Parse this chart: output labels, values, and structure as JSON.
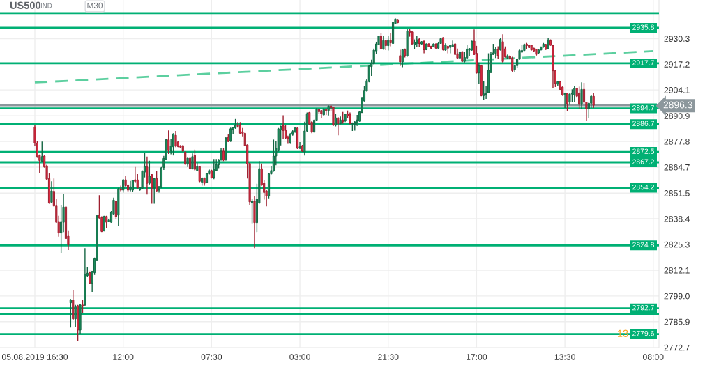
{
  "chart_data": {
    "type": "candlestick",
    "title": "US500",
    "subtitle": "IND",
    "annotations": [
      "M30",
      "2896.3",
      "13"
    ],
    "categories": [
      "05.08.2019 16:30",
      null,
      null,
      null,
      null,
      null,
      null,
      null,
      null,
      null,
      null,
      null,
      null,
      null,
      null,
      null,
      null,
      null,
      null,
      null,
      null,
      null,
      null,
      null,
      null,
      null,
      null,
      null,
      null,
      null,
      null,
      null,
      null,
      null,
      null,
      null,
      null,
      "12:00",
      null,
      null,
      null,
      null,
      null,
      null,
      null,
      null,
      null,
      null,
      null,
      null,
      null,
      null,
      null,
      null,
      null,
      null,
      null,
      null,
      null,
      null,
      null,
      null,
      null,
      null,
      null,
      null,
      null,
      null,
      null,
      null,
      null,
      null,
      null,
      null,
      "07:30",
      null,
      null,
      null,
      null,
      null,
      null,
      null,
      null,
      null,
      null,
      null,
      null,
      null,
      null,
      null,
      null,
      null,
      null,
      null,
      null,
      null,
      null,
      null,
      null,
      null,
      null,
      null,
      null,
      null,
      null,
      null,
      null,
      null,
      null,
      null,
      null,
      "03:00",
      null,
      null,
      null,
      null,
      null,
      null,
      null,
      null,
      null,
      null,
      null,
      null,
      null,
      null,
      null,
      null,
      null,
      null,
      null,
      null,
      null,
      null,
      null,
      null,
      null,
      null,
      null,
      null,
      null,
      null,
      null,
      null,
      null,
      null,
      null,
      null,
      "21:30",
      null,
      null,
      null,
      null,
      null,
      null,
      null,
      null,
      null,
      null,
      null,
      null,
      null,
      null,
      null,
      null,
      null,
      null,
      null,
      null,
      null,
      null,
      null,
      null,
      null,
      null,
      null,
      null,
      null,
      null,
      null,
      null,
      null,
      null,
      null,
      null,
      "17:00",
      null,
      null,
      null,
      null,
      null,
      null,
      null,
      null,
      null,
      null,
      null,
      null,
      null,
      null,
      null,
      null,
      null,
      null,
      null,
      null,
      null,
      null,
      null,
      null,
      null,
      null,
      null,
      null,
      null,
      null,
      null,
      null,
      null,
      null,
      null,
      null,
      "13:30",
      null,
      null,
      null,
      null,
      null,
      null,
      null,
      null,
      null,
      null,
      null,
      null,
      null,
      null,
      null,
      null,
      null,
      null,
      null,
      null,
      null,
      null,
      null,
      null,
      null,
      null,
      null,
      null,
      null,
      null,
      null,
      null,
      null,
      null,
      null,
      null,
      "08:00"
    ],
    "ohlc": [
      [
        2885.2,
        2886.1,
        2875.5,
        2877.0
      ],
      [
        2877.0,
        2878.0,
        2869.5,
        2870.1
      ],
      [
        2870.7,
        2871.2,
        2861.8,
        2868.1
      ],
      [
        2867.8,
        2877.8,
        2867.4,
        2870.1
      ],
      [
        2870.4,
        2870.7,
        2864.5,
        2864.8
      ],
      [
        2865.4,
        2866.0,
        2858.3,
        2858.6
      ],
      [
        2858.9,
        2861.5,
        2846.1,
        2846.5
      ],
      [
        2846.8,
        2857.5,
        2846.5,
        2852.6
      ],
      [
        2852.4,
        2858.9,
        2844.7,
        2844.9
      ],
      [
        2844.9,
        2848.5,
        2836.4,
        2836.6
      ],
      [
        2837.0,
        2839.9,
        2829.3,
        2831.1
      ],
      [
        2831.1,
        2845.3,
        2821.0,
        2837.0
      ],
      [
        2836.6,
        2851.2,
        2831.6,
        2844.4
      ],
      [
        2844.4,
        2844.7,
        2828.1,
        2828.3
      ],
      [
        2829.5,
        2832.5,
        2822.4,
        2825.1
      ],
      [
        2795.5,
        2797.5,
        2782.9,
        2797.0
      ],
      [
        2797.0,
        2802.1,
        2786.9,
        2787.3
      ],
      [
        2787.3,
        2794.4,
        2783.1,
        2793.5
      ],
      [
        2794.0,
        2794.4,
        2776.2,
        2781.6
      ],
      [
        2781.6,
        2794.7,
        2779.5,
        2794.4
      ],
      [
        2794.4,
        2797.1,
        2790.2,
        2793.8
      ],
      [
        2794.4,
        2823.4,
        2794.0,
        2810.1
      ],
      [
        2809.4,
        2813.9,
        2808.6,
        2810.6
      ],
      [
        2810.9,
        2811.5,
        2805.0,
        2805.6
      ],
      [
        2805.6,
        2811.8,
        2801.1,
        2811.5
      ],
      [
        2810.9,
        2818.6,
        2809.7,
        2818.0
      ],
      [
        2817.4,
        2840.2,
        2817.2,
        2839.9
      ],
      [
        2840.2,
        2850.4,
        2838.5,
        2838.8
      ],
      [
        2839.0,
        2839.7,
        2831.6,
        2831.9
      ],
      [
        2832.2,
        2839.9,
        2831.9,
        2839.6
      ],
      [
        2839.6,
        2839.9,
        2833.4,
        2836.6
      ],
      [
        2837.0,
        2838.2,
        2836.6,
        2837.8
      ],
      [
        2836.6,
        2842.3,
        2836.4,
        2841.7
      ],
      [
        2840.8,
        2849.2,
        2840.5,
        2847.9
      ],
      [
        2847.3,
        2847.6,
        2838.2,
        2839.3
      ],
      [
        2840.2,
        2854.1,
        2834.6,
        2853.6
      ],
      [
        2853.6,
        2855.3,
        2852.4,
        2853.0
      ],
      [
        2853.0,
        2858.6,
        2851.7,
        2858.3
      ],
      [
        2858.3,
        2860.3,
        2854.7,
        2855.3
      ],
      [
        2855.6,
        2855.9,
        2852.1,
        2853.0
      ],
      [
        2853.0,
        2857.7,
        2852.4,
        2854.7
      ],
      [
        2853.0,
        2858.3,
        2852.0,
        2858.0
      ],
      [
        2858.3,
        2864.8,
        2856.5,
        2857.5
      ],
      [
        2858.3,
        2861.2,
        2853.9,
        2854.1
      ],
      [
        2853.2,
        2854.7,
        2852.7,
        2854.4
      ],
      [
        2853.9,
        2863.0,
        2853.6,
        2862.8
      ],
      [
        2862.2,
        2871.9,
        2859.5,
        2865.0
      ],
      [
        2864.8,
        2870.1,
        2850.8,
        2856.5
      ],
      [
        2856.5,
        2868.0,
        2855.9,
        2860.1
      ],
      [
        2860.9,
        2861.2,
        2846.1,
        2854.1
      ],
      [
        2854.1,
        2859.1,
        2846.1,
        2858.9
      ],
      [
        2858.9,
        2862.9,
        2852.4,
        2852.6
      ],
      [
        2853.0,
        2855.1,
        2851.7,
        2854.7
      ],
      [
        2854.4,
        2864.8,
        2854.1,
        2864.4
      ],
      [
        2864.6,
        2870.5,
        2863.3,
        2869.2
      ],
      [
        2868.6,
        2879.0,
        2868.4,
        2878.7
      ],
      [
        2878.7,
        2883.5,
        2871.5,
        2873.1
      ],
      [
        2873.1,
        2879.3,
        2871.3,
        2875.5
      ],
      [
        2875.1,
        2882.0,
        2870.7,
        2881.7
      ],
      [
        2881.0,
        2883.2,
        2874.9,
        2875.5
      ],
      [
        2877.6,
        2877.8,
        2874.9,
        2875.2
      ],
      [
        2875.7,
        2875.9,
        2874.3,
        2874.9
      ],
      [
        2875.7,
        2875.9,
        2872.5,
        2872.9
      ],
      [
        2872.5,
        2872.7,
        2866.0,
        2866.2
      ],
      [
        2866.2,
        2869.5,
        2864.8,
        2869.3
      ],
      [
        2869.3,
        2869.5,
        2863.6,
        2864.0
      ],
      [
        2864.0,
        2871.7,
        2863.6,
        2870.1
      ],
      [
        2870.7,
        2873.7,
        2863.0,
        2863.6
      ],
      [
        2863.0,
        2866.9,
        2862.7,
        2865.0
      ],
      [
        2865.0,
        2865.4,
        2857.1,
        2857.5
      ],
      [
        2857.1,
        2859.5,
        2855.3,
        2859.2
      ],
      [
        2859.2,
        2859.5,
        2855.3,
        2856.5
      ],
      [
        2856.9,
        2861.8,
        2856.5,
        2861.5
      ],
      [
        2861.3,
        2863.6,
        2861.0,
        2863.0
      ],
      [
        2863.0,
        2863.4,
        2858.9,
        2859.2
      ],
      [
        2859.5,
        2868.9,
        2858.6,
        2863.6
      ],
      [
        2863.0,
        2868.9,
        2862.7,
        2866.0
      ],
      [
        2866.0,
        2868.9,
        2864.2,
        2868.4
      ],
      [
        2868.4,
        2874.3,
        2868.1,
        2872.9
      ],
      [
        2872.9,
        2874.3,
        2867.8,
        2868.4
      ],
      [
        2868.4,
        2880.2,
        2868.1,
        2879.6
      ],
      [
        2880.0,
        2881.4,
        2877.6,
        2877.8
      ],
      [
        2878.2,
        2884.9,
        2877.6,
        2884.3
      ],
      [
        2884.0,
        2885.2,
        2881.4,
        2884.9
      ],
      [
        2884.7,
        2889.3,
        2884.3,
        2886.1
      ],
      [
        2886.1,
        2887.7,
        2884.9,
        2885.5
      ],
      [
        2886.1,
        2887.7,
        2881.7,
        2882.0
      ],
      [
        2882.8,
        2884.7,
        2880.4,
        2882.0
      ],
      [
        2882.0,
        2882.2,
        2875.5,
        2875.7
      ],
      [
        2876.1,
        2876.3,
        2858.9,
        2866.3
      ],
      [
        2866.6,
        2866.8,
        2845.3,
        2847.0
      ],
      [
        2846.4,
        2848.5,
        2836.1,
        2847.3
      ],
      [
        2847.3,
        2850.0,
        2823.4,
        2836.4
      ],
      [
        2836.4,
        2856.3,
        2831.6,
        2848.5
      ],
      [
        2846.4,
        2867.8,
        2846.1,
        2864.0
      ],
      [
        2864.0,
        2866.6,
        2855.3,
        2855.6
      ],
      [
        2856.5,
        2858.3,
        2848.2,
        2851.8
      ],
      [
        2852.6,
        2853.0,
        2844.7,
        2850.0
      ],
      [
        2850.0,
        2861.5,
        2848.8,
        2861.3
      ],
      [
        2861.3,
        2865.4,
        2861.0,
        2863.0
      ],
      [
        2862.8,
        2878.8,
        2862.4,
        2870.4
      ],
      [
        2870.4,
        2878.1,
        2865.7,
        2874.3
      ],
      [
        2873.1,
        2884.7,
        2872.7,
        2884.3
      ],
      [
        2883.7,
        2885.9,
        2875.8,
        2885.5
      ],
      [
        2885.8,
        2891.2,
        2879.0,
        2883.4
      ],
      [
        2883.5,
        2886.1,
        2879.2,
        2879.6
      ],
      [
        2880.2,
        2880.8,
        2876.6,
        2879.2
      ],
      [
        2877.2,
        2882.0,
        2876.6,
        2881.7
      ],
      [
        2881.4,
        2883.7,
        2880.8,
        2882.9
      ],
      [
        2882.6,
        2884.9,
        2882.3,
        2884.7
      ],
      [
        2884.7,
        2884.9,
        2874.0,
        2874.3
      ],
      [
        2874.3,
        2877.5,
        2874.0,
        2875.1
      ],
      [
        2875.5,
        2876.1,
        2872.5,
        2872.9
      ],
      [
        2872.5,
        2887.9,
        2870.7,
        2883.2
      ],
      [
        2883.2,
        2892.6,
        2882.8,
        2892.0
      ],
      [
        2892.6,
        2892.9,
        2886.1,
        2886.7
      ],
      [
        2887.7,
        2888.5,
        2882.0,
        2882.6
      ],
      [
        2882.6,
        2889.1,
        2882.3,
        2888.7
      ],
      [
        2888.7,
        2894.8,
        2888.2,
        2894.4
      ],
      [
        2894.4,
        2894.6,
        2892.0,
        2893.0
      ],
      [
        2893.6,
        2893.8,
        2889.9,
        2892.0
      ],
      [
        2891.4,
        2894.8,
        2891.1,
        2894.4
      ],
      [
        2894.4,
        2894.6,
        2891.4,
        2893.5
      ],
      [
        2893.6,
        2896.2,
        2891.1,
        2895.9
      ],
      [
        2895.9,
        2896.2,
        2893.5,
        2895.0
      ],
      [
        2895.3,
        2895.6,
        2885.8,
        2886.1
      ],
      [
        2886.1,
        2891.8,
        2885.5,
        2889.9
      ],
      [
        2889.9,
        2890.1,
        2881.0,
        2886.9
      ],
      [
        2886.9,
        2890.6,
        2886.7,
        2888.8
      ],
      [
        2888.8,
        2892.9,
        2886.9,
        2887.9
      ],
      [
        2888.5,
        2892.0,
        2887.7,
        2891.8
      ],
      [
        2891.8,
        2893.6,
        2889.7,
        2890.9
      ],
      [
        2891.8,
        2892.6,
        2886.7,
        2886.9
      ],
      [
        2886.9,
        2887.5,
        2883.2,
        2887.3
      ],
      [
        2886.7,
        2888.5,
        2883.4,
        2887.7
      ],
      [
        2886.1,
        2891.4,
        2885.9,
        2888.8
      ],
      [
        2888.2,
        2893.2,
        2887.9,
        2892.9
      ],
      [
        2892.6,
        2900.6,
        2892.3,
        2900.0
      ],
      [
        2898.5,
        2906.0,
        2898.2,
        2903.9
      ],
      [
        2903.6,
        2909.8,
        2903.3,
        2908.8
      ],
      [
        2908.4,
        2916.9,
        2908.0,
        2916.3
      ],
      [
        2916.0,
        2919.5,
        2911.3,
        2917.7
      ],
      [
        2917.5,
        2925.2,
        2917.1,
        2924.4
      ],
      [
        2924.0,
        2928.7,
        2922.5,
        2927.6
      ],
      [
        2927.2,
        2931.7,
        2927.0,
        2931.6
      ],
      [
        2931.6,
        2933.1,
        2924.8,
        2925.0
      ],
      [
        2925.0,
        2931.9,
        2924.6,
        2929.3
      ],
      [
        2929.3,
        2929.6,
        2924.4,
        2926.7
      ],
      [
        2926.7,
        2931.6,
        2924.2,
        2929.6
      ],
      [
        2929.6,
        2933.1,
        2926.4,
        2928.1
      ],
      [
        2927.8,
        2938.8,
        2927.6,
        2938.6
      ],
      [
        2938.0,
        2940.6,
        2937.7,
        2940.3
      ],
      [
        2940.0,
        2940.3,
        2938.2,
        2938.4
      ],
      [
        2921.6,
        2924.6,
        2916.3,
        2918.4
      ],
      [
        2918.4,
        2924.8,
        2915.7,
        2924.6
      ],
      [
        2924.6,
        2925.2,
        2920.7,
        2921.6
      ],
      [
        2921.4,
        2935.3,
        2921.0,
        2934.3
      ],
      [
        2934.3,
        2935.3,
        2931.3,
        2933.5
      ],
      [
        2933.7,
        2934.0,
        2927.3,
        2927.6
      ],
      [
        2927.2,
        2929.9,
        2925.0,
        2928.4
      ],
      [
        2927.9,
        2931.9,
        2926.1,
        2929.7
      ],
      [
        2929.9,
        2930.8,
        2926.1,
        2927.8
      ],
      [
        2927.6,
        2929.0,
        2927.3,
        2928.7
      ],
      [
        2929.0,
        2929.2,
        2922.8,
        2924.6
      ],
      [
        2924.6,
        2927.8,
        2924.4,
        2927.6
      ],
      [
        2927.6,
        2927.9,
        2925.9,
        2926.1
      ],
      [
        2926.4,
        2926.6,
        2924.8,
        2925.4
      ],
      [
        2926.1,
        2927.8,
        2925.9,
        2927.6
      ],
      [
        2927.6,
        2927.8,
        2925.2,
        2925.4
      ],
      [
        2925.4,
        2928.7,
        2925.2,
        2927.8
      ],
      [
        2927.8,
        2930.5,
        2927.6,
        2930.3
      ],
      [
        2930.8,
        2931.0,
        2924.2,
        2924.6
      ],
      [
        2924.4,
        2927.9,
        2924.1,
        2927.0
      ],
      [
        2926.4,
        2926.6,
        2922.8,
        2925.4
      ],
      [
        2925.8,
        2927.2,
        2922.8,
        2927.0
      ],
      [
        2926.1,
        2929.3,
        2925.9,
        2927.3
      ],
      [
        2927.6,
        2927.8,
        2922.0,
        2922.2
      ],
      [
        2922.6,
        2925.2,
        2920.2,
        2920.4
      ],
      [
        2920.4,
        2923.8,
        2920.2,
        2923.4
      ],
      [
        2923.6,
        2923.9,
        2918.3,
        2918.7
      ],
      [
        2918.7,
        2923.4,
        2918.1,
        2920.7
      ],
      [
        2920.4,
        2927.0,
        2920.2,
        2925.0
      ],
      [
        2924.4,
        2925.4,
        2921.3,
        2925.2
      ],
      [
        2924.4,
        2929.2,
        2924.1,
        2929.0
      ],
      [
        2929.0,
        2935.0,
        2922.0,
        2922.2
      ],
      [
        2922.8,
        2926.6,
        2912.5,
        2912.8
      ],
      [
        2912.8,
        2918.1,
        2907.4,
        2916.5
      ],
      [
        2916.5,
        2916.9,
        2900.9,
        2901.2
      ],
      [
        2901.2,
        2908.6,
        2899.1,
        2902.1
      ],
      [
        2901.7,
        2906.2,
        2899.5,
        2902.3
      ],
      [
        2902.7,
        2922.8,
        2902.5,
        2914.2
      ],
      [
        2913.0,
        2923.6,
        2912.8,
        2922.2
      ],
      [
        2922.2,
        2927.6,
        2922.0,
        2923.0
      ],
      [
        2922.8,
        2926.0,
        2920.4,
        2924.8
      ],
      [
        2924.8,
        2926.4,
        2919.9,
        2921.6
      ],
      [
        2924.5,
        2930.5,
        2924.2,
        2929.9
      ],
      [
        2928.7,
        2932.5,
        2918.0,
        2918.6
      ],
      [
        2925.1,
        2926.3,
        2920.6,
        2921.0
      ],
      [
        2920.4,
        2922.2,
        2919.8,
        2921.6
      ],
      [
        2921.2,
        2921.8,
        2919.7,
        2920.2
      ],
      [
        2920.4,
        2921.0,
        2913.1,
        2913.9
      ],
      [
        2914.5,
        2916.8,
        2913.3,
        2916.5
      ],
      [
        2916.5,
        2920.2,
        2915.5,
        2919.8
      ],
      [
        2919.8,
        2924.9,
        2919.5,
        2924.2
      ],
      [
        2923.4,
        2926.9,
        2923.0,
        2924.2
      ],
      [
        2924.2,
        2927.7,
        2924.0,
        2927.3
      ],
      [
        2927.5,
        2928.1,
        2925.1,
        2926.7
      ],
      [
        2926.9,
        2927.3,
        2925.5,
        2925.7
      ],
      [
        2926.9,
        2927.1,
        2924.2,
        2924.5
      ],
      [
        2925.4,
        2925.6,
        2923.4,
        2924.0
      ],
      [
        2924.9,
        2925.1,
        2921.6,
        2922.2
      ],
      [
        2923.0,
        2924.8,
        2922.5,
        2924.5
      ],
      [
        2924.5,
        2926.3,
        2924.3,
        2926.0
      ],
      [
        2926.0,
        2928.1,
        2925.7,
        2927.5
      ],
      [
        2927.3,
        2927.5,
        2924.5,
        2924.9
      ],
      [
        2925.1,
        2930.5,
        2924.9,
        2929.6
      ],
      [
        2929.3,
        2929.9,
        2926.7,
        2926.9
      ],
      [
        2926.7,
        2926.9,
        2905.2,
        2913.9
      ],
      [
        2913.9,
        2914.1,
        2905.6,
        2907.4
      ],
      [
        2907.1,
        2908.6,
        2906.0,
        2908.3
      ],
      [
        2908.3,
        2908.6,
        2904.2,
        2904.4
      ],
      [
        2905.6,
        2905.8,
        2901.1,
        2901.5
      ],
      [
        2901.5,
        2902.6,
        2894.9,
        2902.4
      ],
      [
        2902.4,
        2902.6,
        2893.2,
        2897.0
      ],
      [
        2897.9,
        2902.3,
        2896.5,
        2902.0
      ],
      [
        2902.0,
        2904.4,
        2897.9,
        2902.6
      ],
      [
        2901.5,
        2906.2,
        2897.9,
        2905.0
      ],
      [
        2905.0,
        2905.2,
        2900.5,
        2900.9
      ],
      [
        2902.6,
        2905.8,
        2894.4,
        2896.7
      ],
      [
        2896.7,
        2908.0,
        2894.4,
        2904.4
      ],
      [
        2904.4,
        2907.7,
        2896.7,
        2897.9
      ],
      [
        2897.9,
        2898.1,
        2888.4,
        2894.4
      ],
      [
        2894.4,
        2897.5,
        2889.6,
        2897.3
      ],
      [
        2897.3,
        2901.5,
        2894.9,
        2900.9
      ],
      [
        2900.9,
        2902.4,
        2894.9,
        2896.3
      ],
      null,
      null,
      null,
      null,
      null,
      null,
      null,
      null,
      null,
      null,
      null,
      null,
      null,
      null,
      null,
      null,
      null,
      null,
      null,
      null,
      null,
      null,
      null,
      null,
      null
    ],
    "colors": [
      "#dc2a40",
      "#dc2a40",
      "#dc2a40",
      "#1b8c5c",
      "#dc2a40",
      "#dc2a40",
      "#dc2a40",
      "#1b8c5c",
      "#dc2a40",
      "#dc2a40",
      "#dc2a40",
      "#1b8c5c",
      "#1b8c5c",
      "#dc2a40",
      "#dc2a40",
      "#1b8c5c",
      "#dc2a40",
      "#1b8c5c",
      "#dc2a40",
      "#1b8c5c",
      "#dc2a40",
      "#1b8c5c",
      "#1b8c5c",
      "#dc2a40",
      "#1b8c5c",
      "#1b8c5c",
      "#1b8c5c",
      "#dc2a40",
      "#dc2a40",
      "#1b8c5c",
      "#dc2a40",
      "#1b8c5c",
      "#1b8c5c",
      "#1b8c5c",
      "#dc2a40",
      "#1b8c5c",
      "#dc2a40",
      "#1b8c5c",
      "#dc2a40",
      "#dc2a40",
      "#1b8c5c",
      "#1b8c5c",
      "#dc2a40",
      "#dc2a40",
      "#1b8c5c",
      "#1b8c5c",
      "#1b8c5c",
      "#dc2a40",
      "#1b8c5c",
      "#dc2a40",
      "#1b8c5c",
      "#dc2a40",
      "#1b8c5c",
      "#1b8c5c",
      "#1b8c5c",
      "#1b8c5c",
      "#dc2a40",
      "#1b8c5c",
      "#1b8c5c",
      "#dc2a40",
      "#dc2a40",
      "#dc2a40",
      "#dc2a40",
      "#dc2a40",
      "#1b8c5c",
      "#dc2a40",
      "#1b8c5c",
      "#dc2a40",
      "#1b8c5c",
      "#dc2a40",
      "#1b8c5c",
      "#dc2a40",
      "#1b8c5c",
      "#1b8c5c",
      "#dc2a40",
      "#1b8c5c",
      "#1b8c5c",
      "#1b8c5c",
      "#1b8c5c",
      "#dc2a40",
      "#1b8c5c",
      "#dc2a40",
      "#1b8c5c",
      "#1b8c5c",
      "#1b8c5c",
      "#dc2a40",
      "#dc2a40",
      "#dc2a40",
      "#dc2a40",
      "#dc2a40",
      "#dc2a40",
      "#1b8c5c",
      "#dc2a40",
      "#1b8c5c",
      "#1b8c5c",
      "#dc2a40",
      "#dc2a40",
      "#dc2a40",
      "#1b8c5c",
      "#1b8c5c",
      "#1b8c5c",
      "#1b8c5c",
      "#1b8c5c",
      "#1b8c5c",
      "#dc2a40",
      "#dc2a40",
      "#dc2a40",
      "#1b8c5c",
      "#1b8c5c",
      "#1b8c5c",
      "#dc2a40",
      "#1b8c5c",
      "#dc2a40",
      "#1b8c5c",
      "#1b8c5c",
      "#dc2a40",
      "#dc2a40",
      "#1b8c5c",
      "#1b8c5c",
      "#dc2a40",
      "#dc2a40",
      "#1b8c5c",
      "#dc2a40",
      "#1b8c5c",
      "#dc2a40",
      "#dc2a40",
      "#1b8c5c",
      "#dc2a40",
      "#1b8c5c",
      "#dc2a40",
      "#1b8c5c",
      "#dc2a40",
      "#dc2a40",
      "#1b8c5c",
      "#1b8c5c",
      "#1b8c5c",
      "#1b8c5c",
      "#1b8c5c",
      "#1b8c5c",
      "#1b8c5c",
      "#1b8c5c",
      "#1b8c5c",
      "#1b8c5c",
      "#1b8c5c",
      "#1b8c5c",
      "#dc2a40",
      "#1b8c5c",
      "#dc2a40",
      "#1b8c5c",
      "#dc2a40",
      "#1b8c5c",
      "#1b8c5c",
      "#dc2a40",
      "#dc2a40",
      "#1b8c5c",
      "#dc2a40",
      "#1b8c5c",
      "#dc2a40",
      "#dc2a40",
      "#1b8c5c",
      "#1b8c5c",
      "#dc2a40",
      "#1b8c5c",
      "#dc2a40",
      "#1b8c5c",
      "#dc2a40",
      "#dc2a40",
      "#1b8c5c",
      "#dc2a40",
      "#1b8c5c",
      "#1b8c5c",
      "#dc2a40",
      "#1b8c5c",
      "#dc2a40",
      "#1b8c5c",
      "#1b8c5c",
      "#dc2a40",
      "#dc2a40",
      "#1b8c5c",
      "#dc2a40",
      "#1b8c5c",
      "#1b8c5c",
      "#1b8c5c",
      "#1b8c5c",
      "#dc2a40",
      "#dc2a40",
      "#1b8c5c",
      "#dc2a40",
      "#1b8c5c",
      "#1b8c5c",
      "#1b8c5c",
      "#1b8c5c",
      "#1b8c5c",
      "#1b8c5c",
      "#dc2a40",
      "#1b8c5c",
      "#dc2a40",
      "#dc2a40",
      "#1b8c5c",
      "#dc2a40",
      "#dc2a40",
      "#1b8c5c",
      "#1b8c5c",
      "#1b8c5c",
      "#1b8c5c",
      "#1b8c5c",
      "#dc2a40",
      "#dc2a40",
      "#dc2a40",
      "#dc2a40",
      "#dc2a40",
      "#1b8c5c",
      "#1b8c5c",
      "#1b8c5c",
      "#dc2a40",
      "#1b8c5c",
      "#dc2a40",
      "#dc2a40",
      "#dc2a40",
      "#1b8c5c",
      "#dc2a40",
      "#dc2a40",
      "#1b8c5c",
      "#dc2a40",
      "#1b8c5c",
      "#1b8c5c",
      "#1b8c5c",
      "#dc2a40",
      "#dc2a40",
      "#1b8c5c",
      "#dc2a40",
      "#dc2a40",
      "#1b8c5c",
      "#1b8c5c",
      "#dc2a40",
      null,
      null,
      null,
      null,
      null,
      null,
      null,
      null,
      null,
      null,
      null,
      null,
      null,
      null,
      null,
      null,
      null,
      null,
      null,
      null,
      null,
      null,
      null,
      null,
      null
    ],
    "series": [
      {
        "type": "line",
        "color": "#5ccf9f",
        "line_style": "dashed",
        "values": [
          2907.9,
          null,
          null,
          null,
          null,
          null,
          null,
          null,
          null,
          null,
          null,
          null,
          null,
          null,
          null,
          null,
          null,
          null,
          null,
          null,
          null,
          null,
          null,
          null,
          null,
          null,
          null,
          null,
          null,
          null,
          null,
          null,
          null,
          null,
          null,
          null,
          null,
          null,
          null,
          null,
          null,
          null,
          null,
          null,
          null,
          null,
          null,
          null,
          null,
          null,
          null,
          null,
          null,
          null,
          null,
          null,
          null,
          null,
          null,
          null,
          null,
          null,
          null,
          null,
          null,
          null,
          null,
          null,
          null,
          null,
          null,
          null,
          null,
          null,
          null,
          null,
          null,
          null,
          null,
          null,
          null,
          null,
          null,
          null,
          null,
          null,
          null,
          null,
          null,
          null,
          null,
          null,
          null,
          null,
          null,
          null,
          null,
          null,
          null,
          null,
          null,
          null,
          null,
          null,
          null,
          null,
          null,
          null,
          null,
          null,
          null,
          null,
          null,
          null,
          null,
          null,
          null,
          null,
          null,
          null,
          null,
          null,
          null,
          null,
          null,
          null,
          null,
          null,
          null,
          null,
          null,
          null,
          null,
          null,
          null,
          null,
          null,
          null,
          null,
          null,
          null,
          null,
          null,
          null,
          null,
          null,
          null,
          null,
          null,
          null,
          null,
          null,
          null,
          null,
          null,
          null,
          null,
          null,
          null,
          null,
          null,
          null,
          null,
          null,
          null,
          null,
          null,
          null,
          null,
          null,
          null,
          null,
          null,
          null,
          null,
          null,
          null,
          null,
          null,
          null,
          null,
          null,
          null,
          null,
          null,
          null,
          null,
          null,
          null,
          null,
          null,
          null,
          null,
          null,
          null,
          null,
          null,
          null,
          null,
          null,
          null,
          null,
          null,
          null,
          null,
          null,
          null,
          null,
          null,
          null,
          null,
          null,
          null,
          null,
          null,
          null,
          null,
          null,
          null,
          null,
          null,
          null,
          null,
          null,
          null,
          null,
          null,
          null,
          null,
          null,
          null,
          null,
          null,
          null,
          null,
          null,
          null,
          null,
          null,
          null,
          null,
          null,
          null,
          null,
          null,
          null,
          null,
          null,
          null,
          null,
          null,
          null,
          null,
          null,
          null,
          null,
          null,
          null,
          null,
          2923.9
        ]
      }
    ],
    "ylim": [
      2772.5,
      2950.0
    ],
    "yticks": [
      2772.7,
      2785.9,
      {
        "value": 2799.0,
        "label": "2799.0"
      },
      2812.1,
      2825.3,
      2838.4,
      2851.5,
      2864.7,
      2877.8,
      2890.9,
      2904.1,
      2917.2,
      2930.3
    ],
    "grid": true,
    "ref_lines": [
      {
        "axis": "y",
        "value": 2943.3,
        "color": "#00b074"
      },
      {
        "axis": "y",
        "value": 2935.8,
        "label": "2935.8",
        "color": "#00b074"
      },
      {
        "axis": "y",
        "value": 2917.7,
        "label": "2917.7",
        "color": "#00b074"
      },
      {
        "axis": "y",
        "value": 2896.3,
        "color": "#8c979c"
      },
      {
        "axis": "y",
        "value": 2894.7,
        "label": "2894.7",
        "color": "#00b074"
      },
      {
        "axis": "y",
        "value": 2886.7,
        "label": "2886.7",
        "color": "#00b074"
      },
      {
        "axis": "y",
        "value": 2872.5,
        "label": "2872.5",
        "color": "#00b074"
      },
      {
        "axis": "y",
        "value": 2867.2,
        "label": "2867.2",
        "color": "#00b074"
      },
      {
        "axis": "y",
        "value": 2854.2,
        "label": "2854.2",
        "color": "#00b074"
      },
      {
        "axis": "y",
        "value": 2824.8,
        "label": "2824.8",
        "color": "#00b074"
      },
      {
        "axis": "y",
        "value": 2792.7,
        "label": "2792.7",
        "color": "#00b074"
      },
      {
        "axis": "y",
        "value": 2789.9,
        "color": "#00b074"
      },
      {
        "axis": "y",
        "value": 2779.6,
        "label": "2779.6",
        "color": "#00b074"
      }
    ]
  }
}
